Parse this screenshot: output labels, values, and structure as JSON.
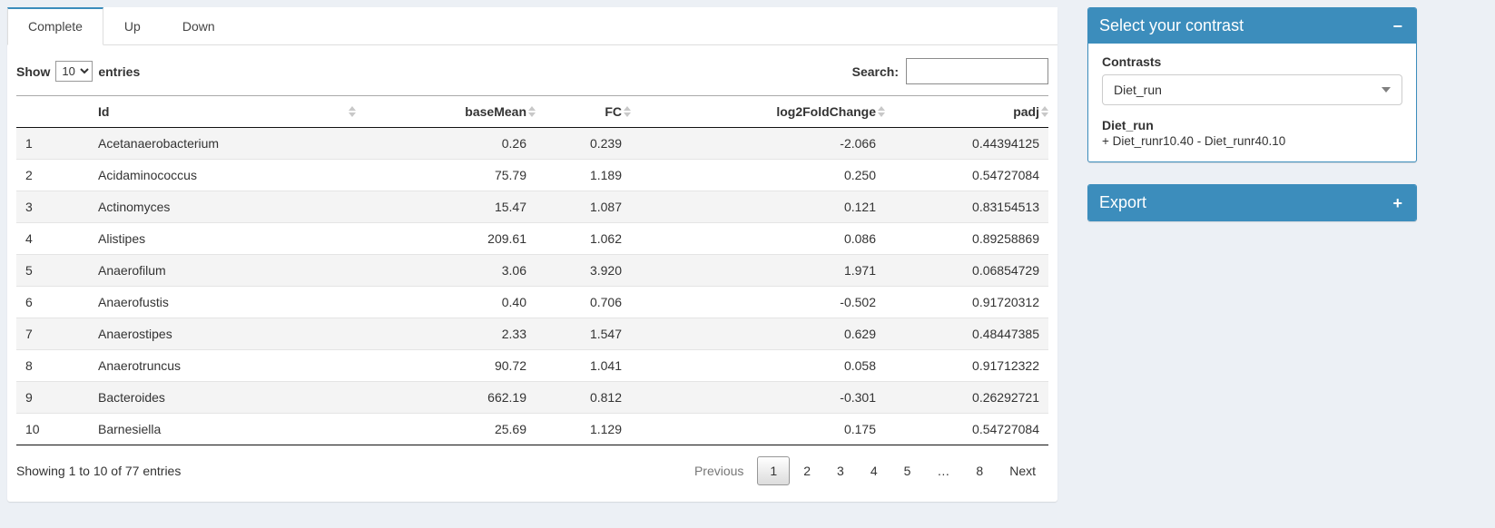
{
  "tabs": [
    {
      "label": "Complete"
    },
    {
      "label": "Up"
    },
    {
      "label": "Down"
    }
  ],
  "controls": {
    "show_label": "Show",
    "page_length": "10",
    "entries_label": "entries",
    "search_label": "Search:"
  },
  "table": {
    "columns": [
      "Id",
      "baseMean",
      "FC",
      "log2FoldChange",
      "padj"
    ],
    "rows": [
      {
        "n": "1",
        "id": "Acetanaerobacterium",
        "baseMean": "0.26",
        "fc": "0.239",
        "log2fc": "-2.066",
        "padj": "0.44394125"
      },
      {
        "n": "2",
        "id": "Acidaminococcus",
        "baseMean": "75.79",
        "fc": "1.189",
        "log2fc": "0.250",
        "padj": "0.54727084"
      },
      {
        "n": "3",
        "id": "Actinomyces",
        "baseMean": "15.47",
        "fc": "1.087",
        "log2fc": "0.121",
        "padj": "0.83154513"
      },
      {
        "n": "4",
        "id": "Alistipes",
        "baseMean": "209.61",
        "fc": "1.062",
        "log2fc": "0.086",
        "padj": "0.89258869"
      },
      {
        "n": "5",
        "id": "Anaerofilum",
        "baseMean": "3.06",
        "fc": "3.920",
        "log2fc": "1.971",
        "padj": "0.06854729"
      },
      {
        "n": "6",
        "id": "Anaerofustis",
        "baseMean": "0.40",
        "fc": "0.706",
        "log2fc": "-0.502",
        "padj": "0.91720312"
      },
      {
        "n": "7",
        "id": "Anaerostipes",
        "baseMean": "2.33",
        "fc": "1.547",
        "log2fc": "0.629",
        "padj": "0.48447385"
      },
      {
        "n": "8",
        "id": "Anaerotruncus",
        "baseMean": "90.72",
        "fc": "1.041",
        "log2fc": "0.058",
        "padj": "0.91712322"
      },
      {
        "n": "9",
        "id": "Bacteroides",
        "baseMean": "662.19",
        "fc": "0.812",
        "log2fc": "-0.301",
        "padj": "0.26292721"
      },
      {
        "n": "10",
        "id": "Barnesiella",
        "baseMean": "25.69",
        "fc": "1.129",
        "log2fc": "0.175",
        "padj": "0.54727084"
      }
    ]
  },
  "footer": {
    "info": "Showing 1 to 10 of 77 entries",
    "previous": "Previous",
    "pages": [
      "1",
      "2",
      "3",
      "4",
      "5",
      "…",
      "8"
    ],
    "next": "Next"
  },
  "contrast_box": {
    "title": "Select your contrast",
    "collapse_icon": "−",
    "contrasts_label": "Contrasts",
    "selected": "Diet_run",
    "detail_title": "Diet_run",
    "detail_text": "+ Diet_runr10.40 - Diet_runr40.10"
  },
  "export_box": {
    "title": "Export",
    "expand_icon": "+"
  },
  "colors": {
    "primary": "#3c8dbc",
    "page_bg": "#ecf0f5"
  }
}
